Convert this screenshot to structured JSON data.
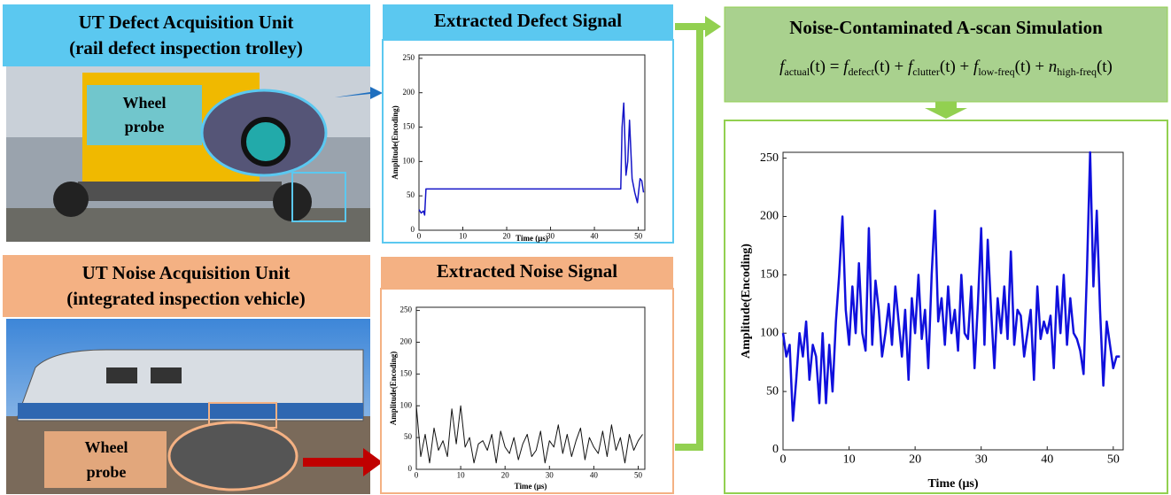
{
  "units": [
    {
      "title_lines": [
        "UT Defect Acquisition Unit",
        "(rail defect inspection trolley)"
      ],
      "probe_lines": [
        "Wheel",
        "probe"
      ]
    },
    {
      "title_lines": [
        "UT Noise Acquisition Unit",
        "(integrated inspection vehicle)"
      ],
      "probe_lines": [
        "Wheel",
        "probe"
      ]
    }
  ],
  "formula": [
    {
      "base": "f",
      "sub": "actual",
      "tail": "(t) = "
    },
    {
      "base": "f",
      "sub": "defect",
      "tail": "(t) + "
    },
    {
      "base": "f",
      "sub": "clutter",
      "tail": "(t) + "
    },
    {
      "base": "f",
      "sub": "low-freq",
      "tail": "(t) + "
    },
    {
      "base": "n",
      "sub": "high-freq",
      "tail": "(t)"
    }
  ],
  "chart_data": [
    {
      "type": "line",
      "title": "Extracted Defect Signal",
      "x_label": "Time (μs)",
      "y_label": "Amplitude(Encoding)",
      "color": "#1515c8",
      "x": [
        0,
        0.5,
        1,
        1.3,
        1.6,
        46,
        46.3,
        46.7,
        47.2,
        47.6,
        48,
        48.6,
        49.2,
        49.8,
        50.4,
        50.8,
        51.2
      ],
      "values": [
        30,
        25,
        28,
        22,
        60,
        60,
        150,
        185,
        80,
        100,
        160,
        75,
        55,
        40,
        75,
        72,
        55
      ],
      "xlim": [
        0,
        51.5
      ],
      "ylim": [
        0,
        255
      ],
      "xticks": [
        0,
        10,
        20,
        30,
        40,
        50
      ],
      "yticks": [
        0,
        50,
        100,
        150,
        200,
        250
      ]
    },
    {
      "type": "line",
      "title": "Extracted Noise Signal",
      "x_label": "Time (μs)",
      "y_label": "Amplitude(Encoding)",
      "color": "#111111",
      "x": [
        0,
        1,
        2,
        3,
        4,
        5,
        6,
        7,
        8,
        9,
        10,
        11,
        12,
        13,
        14,
        15,
        16,
        17,
        18,
        19,
        20,
        21,
        22,
        23,
        24,
        25,
        26,
        27,
        28,
        29,
        30,
        31,
        32,
        33,
        34,
        35,
        36,
        37,
        38,
        39,
        40,
        41,
        42,
        43,
        44,
        45,
        46,
        47,
        48,
        49,
        50,
        51
      ],
      "values": [
        100,
        20,
        55,
        10,
        65,
        30,
        45,
        20,
        95,
        40,
        100,
        35,
        50,
        10,
        40,
        45,
        30,
        55,
        10,
        60,
        35,
        25,
        50,
        15,
        40,
        55,
        20,
        30,
        60,
        10,
        45,
        35,
        70,
        25,
        55,
        20,
        45,
        65,
        15,
        50,
        35,
        25,
        60,
        20,
        70,
        30,
        50,
        10,
        55,
        30,
        45,
        55
      ],
      "xlim": [
        0,
        51.5
      ],
      "ylim": [
        0,
        255
      ],
      "xticks": [
        0,
        10,
        20,
        30,
        40,
        50
      ],
      "yticks": [
        0,
        50,
        100,
        150,
        200,
        250
      ]
    },
    {
      "type": "line",
      "title": "Noise-Contaminated A-scan Simulation",
      "x_label": "Time (μs)",
      "y_label": "Amplitude(Encoding)",
      "color": "#1010dd",
      "x": [
        0,
        0.5,
        1,
        1.5,
        2,
        2.5,
        3,
        3.5,
        4,
        4.5,
        5,
        5.5,
        6,
        6.5,
        7,
        7.5,
        8,
        8.5,
        9,
        9.5,
        10,
        10.5,
        11,
        11.5,
        12,
        12.5,
        13,
        13.5,
        14,
        14.5,
        15,
        15.5,
        16,
        16.5,
        17,
        17.5,
        18,
        18.5,
        19,
        19.5,
        20,
        20.5,
        21,
        21.5,
        22,
        22.5,
        23,
        23.5,
        24,
        24.5,
        25,
        25.5,
        26,
        26.5,
        27,
        27.5,
        28,
        28.5,
        29,
        29.5,
        30,
        30.5,
        31,
        31.5,
        32,
        32.5,
        33,
        33.5,
        34,
        34.5,
        35,
        35.5,
        36,
        36.5,
        37,
        37.5,
        38,
        38.5,
        39,
        39.5,
        40,
        40.5,
        41,
        41.5,
        42,
        42.5,
        43,
        43.5,
        44,
        44.5,
        45,
        45.5,
        46,
        46.5,
        47,
        47.5,
        48,
        48.5,
        49,
        49.5,
        50,
        50.5,
        51
      ],
      "values": [
        100,
        80,
        90,
        25,
        60,
        100,
        80,
        110,
        60,
        90,
        80,
        40,
        100,
        40,
        90,
        50,
        110,
        150,
        200,
        120,
        90,
        140,
        100,
        160,
        100,
        85,
        190,
        90,
        145,
        120,
        80,
        100,
        125,
        90,
        140,
        110,
        80,
        120,
        60,
        130,
        100,
        150,
        95,
        120,
        70,
        150,
        205,
        110,
        130,
        90,
        140,
        100,
        120,
        85,
        150,
        100,
        95,
        140,
        70,
        125,
        190,
        90,
        180,
        120,
        70,
        130,
        100,
        140,
        95,
        170,
        90,
        120,
        115,
        80,
        100,
        120,
        60,
        140,
        95,
        110,
        100,
        115,
        70,
        140,
        100,
        150,
        90,
        130,
        100,
        95,
        85,
        65,
        150,
        255,
        140,
        205,
        120,
        55,
        110,
        90,
        70,
        80,
        80
      ],
      "xlim": [
        0,
        51.5
      ],
      "ylim": [
        0,
        255
      ],
      "xticks": [
        0,
        10,
        20,
        30,
        40,
        50
      ],
      "yticks": [
        0,
        50,
        100,
        150,
        200,
        250
      ]
    }
  ]
}
